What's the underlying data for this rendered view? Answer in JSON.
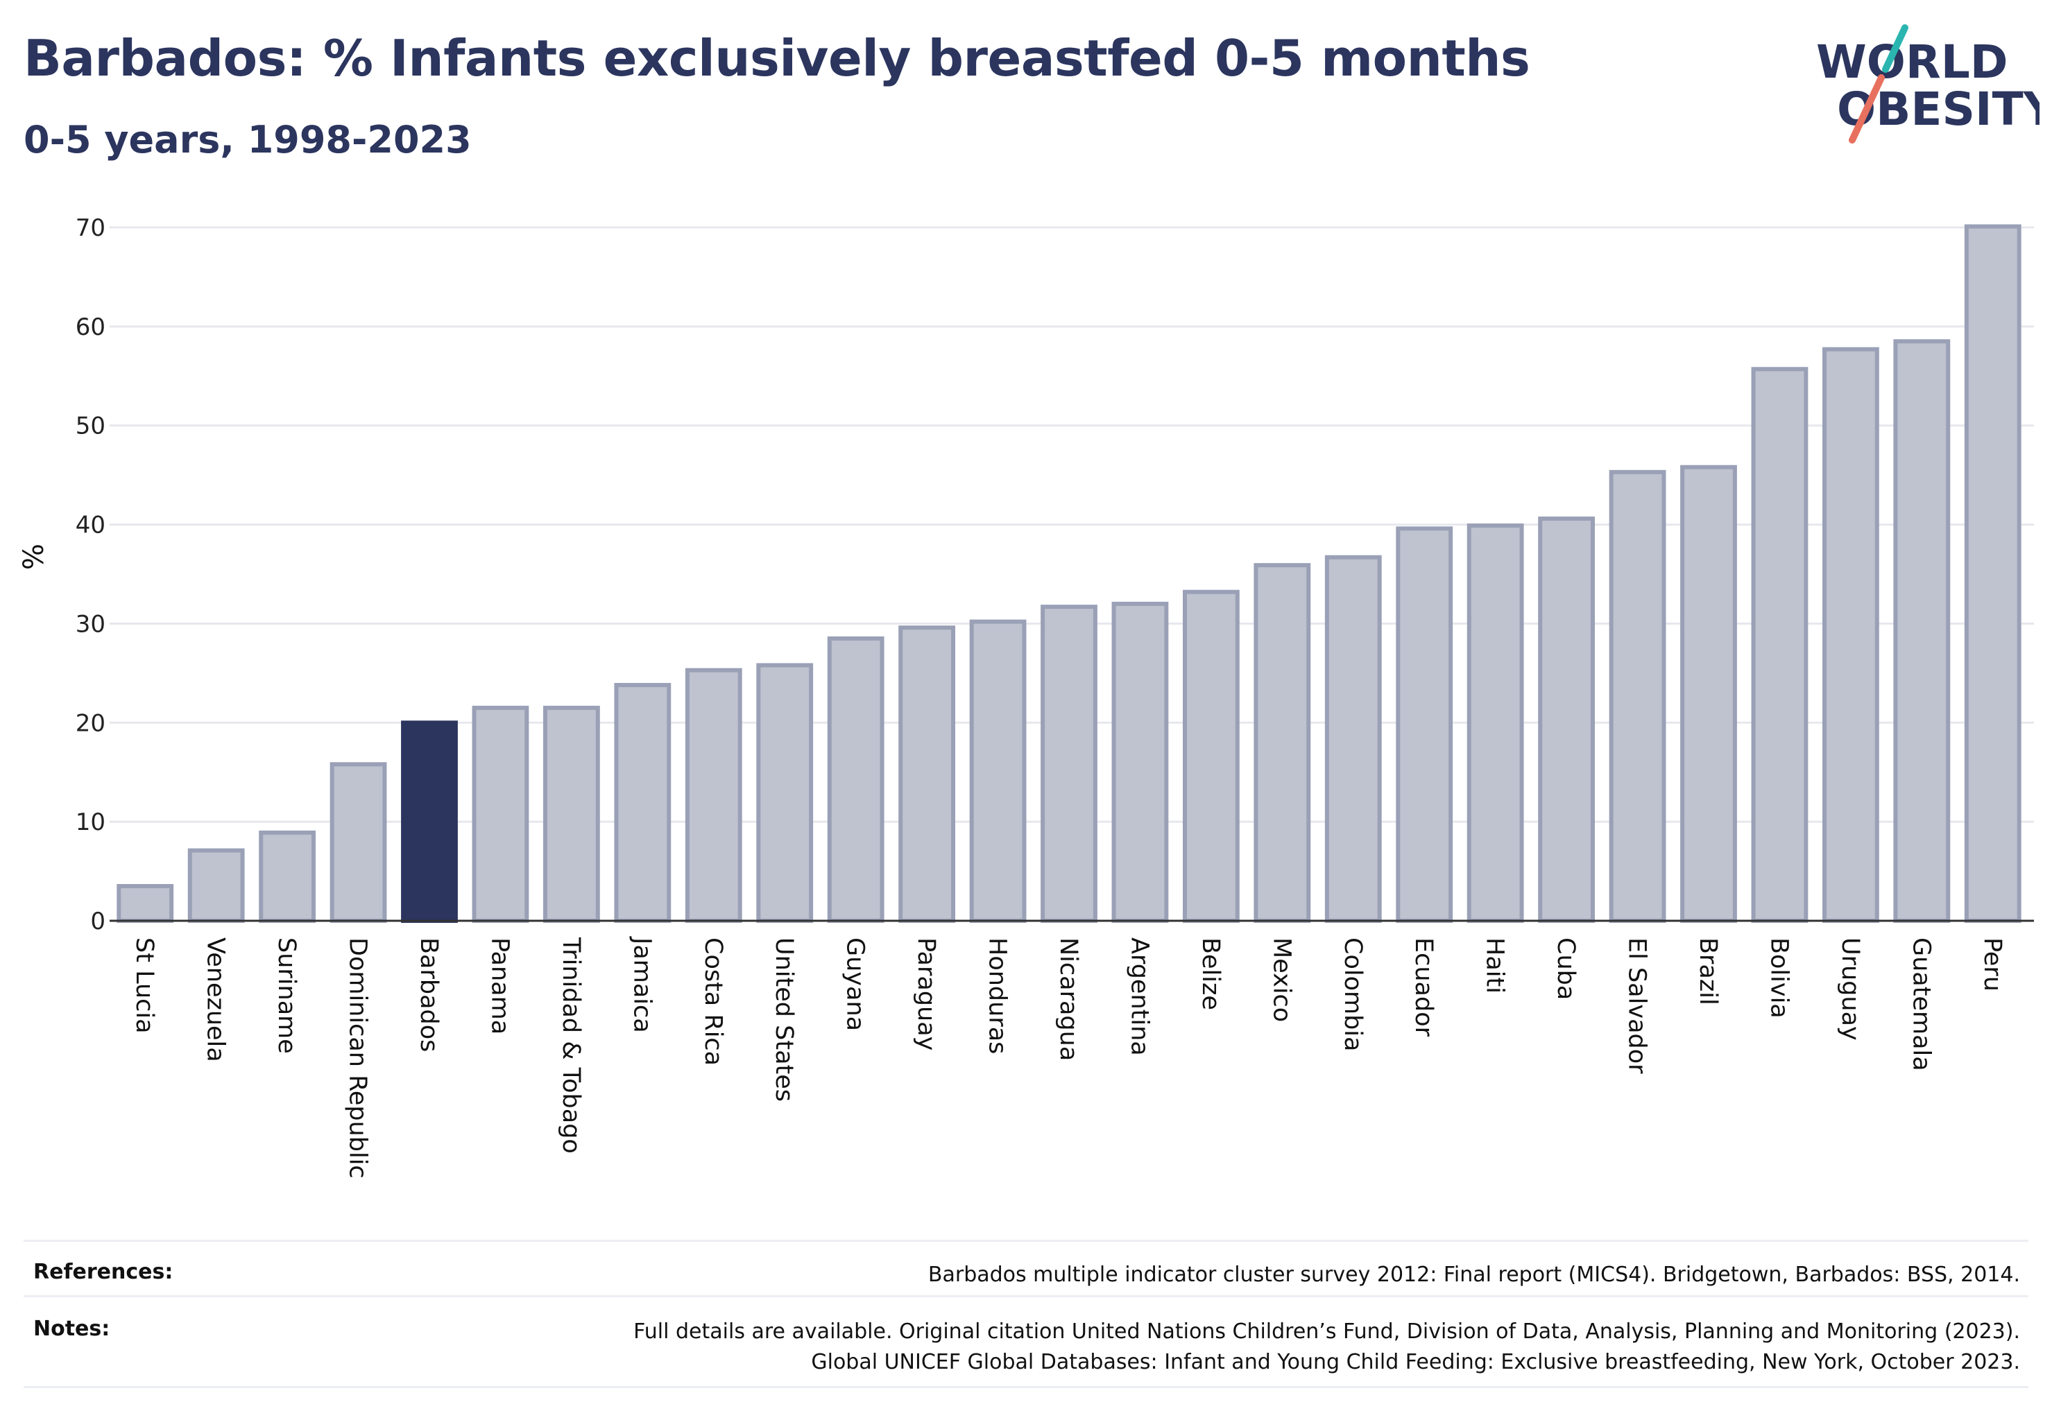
{
  "header": {
    "title": "Barbados: % Infants exclusively breastfed 0-5 months",
    "subtitle": "0-5 years, 1998-2023"
  },
  "logo": {
    "line1": "WORLD",
    "line2": "OBESITY",
    "colors": {
      "text": "#2b355e",
      "slash_top": "#2bb5b0",
      "slash_bottom": "#e8705e"
    }
  },
  "chart_data": {
    "type": "bar",
    "ylabel": "%",
    "xlabel": "",
    "ylim": [
      0,
      70
    ],
    "yticks": [
      0,
      10,
      20,
      30,
      40,
      50,
      60,
      70
    ],
    "grid": true,
    "highlight": "Barbados",
    "colors": {
      "bar": "#bfc2cf",
      "bar_edge": "#9aa0b6",
      "highlight": "#2b355e"
    },
    "categories": [
      "St Lucia",
      "Venezuela",
      "Suriname",
      "Dominican Republic",
      "Barbados",
      "Panama",
      "Trinidad & Tobago",
      "Jamaica",
      "Costa Rica",
      "United States",
      "Guyana",
      "Paraguay",
      "Honduras",
      "Nicaragua",
      "Argentina",
      "Belize",
      "Mexico",
      "Colombia",
      "Ecuador",
      "Haiti",
      "Cuba",
      "El Salvador",
      "Brazil",
      "Bolivia",
      "Uruguay",
      "Guatemala",
      "Peru"
    ],
    "values": [
      3.5,
      7.1,
      8.9,
      15.8,
      20.0,
      21.5,
      21.5,
      23.8,
      25.3,
      25.8,
      28.5,
      29.6,
      30.2,
      31.7,
      32.0,
      33.2,
      35.9,
      36.7,
      39.6,
      39.9,
      40.6,
      45.3,
      45.8,
      55.7,
      57.7,
      58.5,
      70.1
    ]
  },
  "footer": {
    "references_label": "References:",
    "references_text": "Barbados multiple indicator cluster survey 2012: Final report (MICS4). Bridgetown, Barbados: BSS, 2014.",
    "notes_label": "Notes:",
    "notes_line1": "Full details are available. Original citation United Nations Children’s Fund, Division of Data, Analysis, Planning and Monitoring (2023).",
    "notes_line2": "Global UNICEF Global Databases: Infant and Young Child Feeding: Exclusive breastfeeding, New York, October 2023."
  }
}
